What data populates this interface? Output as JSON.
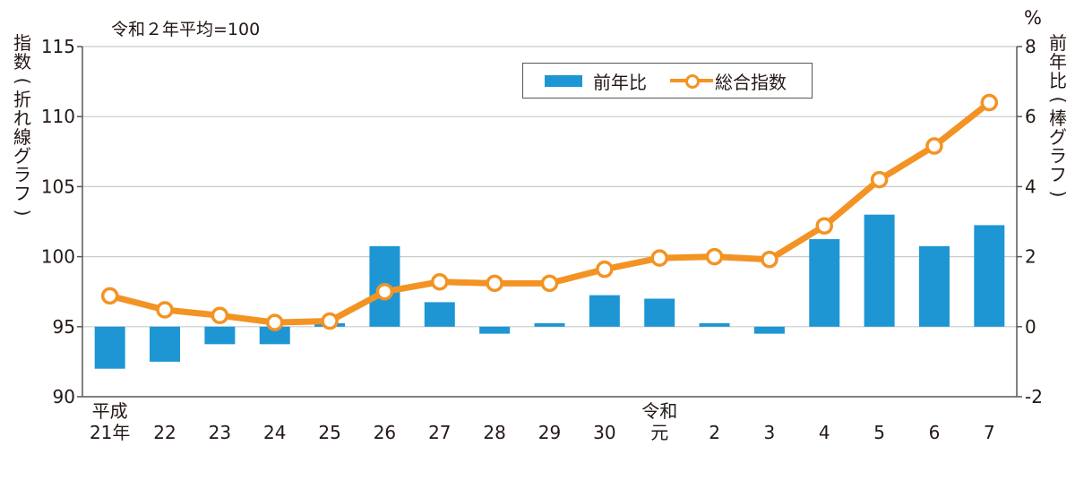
{
  "chart_data": {
    "type": "bar+line",
    "title": "",
    "note": "令和２年平均=100",
    "categories": [
      "平成21年",
      "22",
      "23",
      "24",
      "25",
      "26",
      "27",
      "28",
      "29",
      "30",
      "令和元",
      "2",
      "3",
      "4",
      "5",
      "6",
      "7"
    ],
    "category_labels_top": [
      "平成",
      "",
      "",
      "",
      "",
      "",
      "",
      "",
      "",
      "",
      "令和",
      "",
      "",
      "",
      "",
      "",
      ""
    ],
    "category_labels_bottom": [
      "21年",
      "22",
      "23",
      "24",
      "25",
      "26",
      "27",
      "28",
      "29",
      "30",
      "元",
      "2",
      "3",
      "4",
      "5",
      "6",
      "7"
    ],
    "series": [
      {
        "name": "前年比",
        "type": "bar",
        "axis": "right",
        "color": "#1e96d4",
        "unit": "%",
        "values": [
          -1.2,
          -1.0,
          -0.5,
          -0.5,
          0.1,
          2.3,
          0.7,
          -0.2,
          0.1,
          0.9,
          0.8,
          0.1,
          -0.2,
          2.5,
          3.2,
          2.3,
          2.9
        ]
      },
      {
        "name": "総合指数",
        "type": "line",
        "axis": "left",
        "color": "#f39323",
        "marker": "open-circle",
        "values": [
          97.2,
          96.2,
          95.8,
          95.3,
          95.4,
          97.5,
          98.2,
          98.1,
          98.1,
          99.1,
          99.9,
          100.0,
          99.8,
          102.2,
          105.5,
          107.9,
          111.0
        ]
      }
    ],
    "left_axis": {
      "label": "指数(折れ線グラフ)",
      "ylim": [
        90,
        115
      ],
      "ticks": [
        90,
        95,
        100,
        105,
        110,
        115
      ]
    },
    "right_axis": {
      "label": "前年比(棒グラフ)",
      "unit_label": "%",
      "ylim": [
        -2,
        8
      ],
      "ticks": [
        -2,
        0,
        2,
        4,
        6,
        8
      ]
    },
    "grid": true,
    "legend": {
      "position": "top-center",
      "entries": [
        "前年比",
        "総合指数"
      ]
    }
  },
  "labels": {
    "note": "令和２年平均=100",
    "left_axis_title": "指数(折れ線グラフ)",
    "right_axis_title": "前年比(棒グラフ)",
    "right_axis_unit": "%",
    "legend_bar": "前年比",
    "legend_line": "総合指数"
  }
}
